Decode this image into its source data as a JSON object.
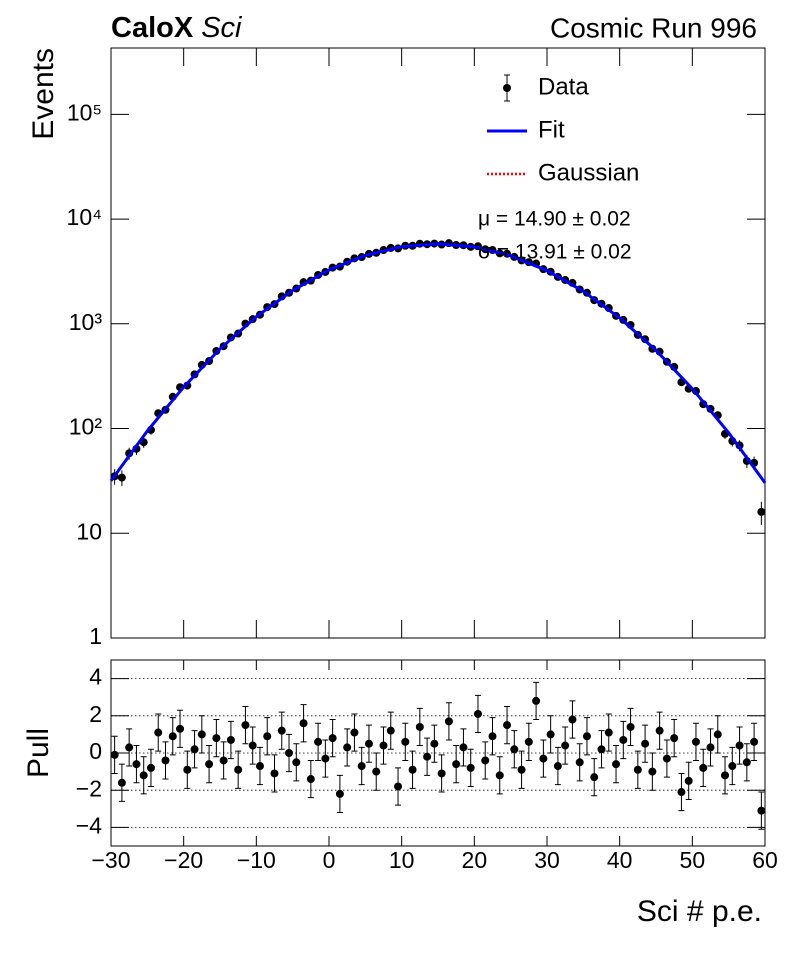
{
  "chart_data": [
    {
      "type": "errorbar",
      "title": "CaloX",
      "title_italic": "Sci",
      "subtitle": "Cosmic Run 996",
      "ylabel": "Events",
      "log_y": true,
      "legend": "top-right",
      "xlim": [
        -30,
        60
      ],
      "xticks": [
        -30,
        -20,
        -10,
        0,
        10,
        20,
        30,
        40,
        50,
        60
      ],
      "ylim": [
        1,
        430000
      ],
      "yticks": [
        1,
        10,
        {
          "value": 100,
          "label": "10²"
        },
        {
          "value": 1000,
          "label": "10³"
        },
        {
          "value": 10000,
          "label": "10⁴"
        },
        {
          "value": 100000,
          "label": "10⁵"
        }
      ],
      "annotations": [
        "μ = 14.90 ± 0.02",
        "σ = 13.91 ± 0.02"
      ],
      "series": [
        {
          "name": "Data",
          "color": "#000000",
          "style": "points",
          "x": [
            -29.5,
            -28.5,
            -27.5,
            -26.5,
            -25.5,
            -24.5,
            -23.5,
            -22.5,
            -21.5,
            -20.5,
            -19.5,
            -18.5,
            -17.5,
            -16.5,
            -15.5,
            -14.5,
            -13.5,
            -12.5,
            -11.5,
            -10.5,
            -9.5,
            -8.5,
            -7.5,
            -6.5,
            -5.5,
            -4.5,
            -3.5,
            -2.5,
            -1.5,
            -0.5,
            0.5,
            1.5,
            2.5,
            3.5,
            4.5,
            5.5,
            6.5,
            7.5,
            8.5,
            9.5,
            10.5,
            11.5,
            12.5,
            13.5,
            14.5,
            15.5,
            16.5,
            17.5,
            18.5,
            19.5,
            20.5,
            21.5,
            22.5,
            23.5,
            24.5,
            25.5,
            26.5,
            27.5,
            28.5,
            29.5,
            30.5,
            31.5,
            32.5,
            33.5,
            34.5,
            35.5,
            36.5,
            37.5,
            38.5,
            39.5,
            40.5,
            41.5,
            42.5,
            43.5,
            44.5,
            45.5,
            46.5,
            47.5,
            48.5,
            49.5,
            50.5,
            51.5,
            52.5,
            53.5,
            54.5,
            55.5,
            56.5,
            57.5,
            58.5,
            59.5
          ],
          "values": [
            35,
            34,
            58,
            64,
            74,
            97,
            140,
            151,
            201,
            248,
            257,
            329,
            405,
            441,
            550,
            611,
            741,
            807,
            1004,
            1108,
            1221,
            1443,
            1542,
            1828,
            1980,
            2171,
            2498,
            2581,
            2927,
            3125,
            3441,
            3514,
            3917,
            4217,
            4340,
            4650,
            4764,
            5063,
            5305,
            5247,
            5562,
            5563,
            5820,
            5756,
            5836,
            5711,
            5891,
            5655,
            5631,
            5432,
            5503,
            5154,
            5060,
            4707,
            4670,
            4350,
            4034,
            3881,
            3761,
            3323,
            3144,
            2803,
            2621,
            2456,
            2127,
            1977,
            1683,
            1556,
            1415,
            1192,
            1089,
            975,
            784,
            713,
            578,
            542,
            434,
            388,
            277,
            240,
            228,
            171,
            154,
            134,
            89,
            76,
            69,
            49,
            47,
            16
          ],
          "errors": [
            5.9,
            5.8,
            7.6,
            8.0,
            8.6,
            9.8,
            11.8,
            12.3,
            14.2,
            15.7,
            16.0,
            18.1,
            20.1,
            21.0,
            23.5,
            24.7,
            27.2,
            28.4,
            31.7,
            33.3,
            34.9,
            38.0,
            39.3,
            42.8,
            44.5,
            46.6,
            50.0,
            50.8,
            54.1,
            55.9,
            58.7,
            59.3,
            62.6,
            64.9,
            65.9,
            68.2,
            69.0,
            71.2,
            72.8,
            72.4,
            74.6,
            74.6,
            76.3,
            75.9,
            76.4,
            75.6,
            76.8,
            75.2,
            75.0,
            73.7,
            74.2,
            71.8,
            71.1,
            68.6,
            68.3,
            66.0,
            63.5,
            62.3,
            61.3,
            57.6,
            56.1,
            52.9,
            51.2,
            49.6,
            46.1,
            44.5,
            41.0,
            39.4,
            37.6,
            34.5,
            33.0,
            31.2,
            28.0,
            26.7,
            24.0,
            23.3,
            20.8,
            19.7,
            16.6,
            15.5,
            15.1,
            13.1,
            12.4,
            11.6,
            9.4,
            8.7,
            8.3,
            7.0,
            6.9,
            4.0
          ]
        },
        {
          "name": "Fit",
          "color": "#0000ff",
          "style": "line",
          "x": [
            -30,
            -25,
            -20,
            -15,
            -10,
            -5,
            0,
            5,
            10,
            15,
            20,
            25,
            30,
            35,
            40,
            45,
            50,
            55,
            60
          ],
          "values": [
            31.7,
            94.8,
            249,
            576,
            1169,
            2085,
            3268,
            4503,
            5451,
            5800,
            5423,
            4456,
            3218,
            2042,
            1139,
            558,
            240,
            91,
            30.3
          ]
        },
        {
          "name": "Gaussian",
          "color": "#ff0000",
          "style": "dotted",
          "x": [
            -30,
            -25,
            -20,
            -15,
            -10,
            -5,
            0,
            5,
            10,
            15,
            20,
            25,
            30,
            35,
            40,
            45,
            50,
            55,
            60
          ],
          "values": [
            31.7,
            94.8,
            249,
            576,
            1169,
            2085,
            3268,
            4503,
            5451,
            5800,
            5423,
            4456,
            3218,
            2042,
            1139,
            558,
            240,
            91,
            30.3
          ]
        }
      ]
    },
    {
      "type": "errorbar",
      "ylabel": "Pull",
      "xlabel": "Sci # p.e.",
      "grid": true,
      "xlim": [
        -30,
        60
      ],
      "xticks": [
        {
          "value": -30,
          "label": "−30"
        },
        {
          "value": -20,
          "label": "−20"
        },
        {
          "value": -10,
          "label": "−10"
        },
        0,
        10,
        20,
        30,
        40,
        50,
        60
      ],
      "ylim": [
        -5,
        5
      ],
      "yticks": [
        {
          "value": -4,
          "label": "−4"
        },
        {
          "value": -2,
          "label": "−2"
        },
        0,
        2,
        4
      ],
      "series": [
        {
          "color": "#000000",
          "style": "points",
          "x": [
            -29.5,
            -28.5,
            -27.5,
            -26.5,
            -25.5,
            -24.5,
            -23.5,
            -22.5,
            -21.5,
            -20.5,
            -19.5,
            -18.5,
            -17.5,
            -16.5,
            -15.5,
            -14.5,
            -13.5,
            -12.5,
            -11.5,
            -10.5,
            -9.5,
            -8.5,
            -7.5,
            -6.5,
            -5.5,
            -4.5,
            -3.5,
            -2.5,
            -1.5,
            -0.5,
            0.5,
            1.5,
            2.5,
            3.5,
            4.5,
            5.5,
            6.5,
            7.5,
            8.5,
            9.5,
            10.5,
            11.5,
            12.5,
            13.5,
            14.5,
            15.5,
            16.5,
            17.5,
            18.5,
            19.5,
            20.5,
            21.5,
            22.5,
            23.5,
            24.5,
            25.5,
            26.5,
            27.5,
            28.5,
            29.5,
            30.5,
            31.5,
            32.5,
            33.5,
            34.5,
            35.5,
            36.5,
            37.5,
            38.5,
            39.5,
            40.5,
            41.5,
            42.5,
            43.5,
            44.5,
            45.5,
            46.5,
            47.5,
            48.5,
            49.5,
            50.5,
            51.5,
            52.5,
            53.5,
            54.5,
            55.5,
            56.5,
            57.5,
            58.5,
            59.5
          ],
          "values": [
            -0.1,
            -1.6,
            0.3,
            -0.6,
            -1.2,
            -0.8,
            1.1,
            -0.4,
            0.9,
            1.3,
            -0.9,
            0.2,
            1.0,
            -0.6,
            0.8,
            -0.4,
            0.7,
            -0.9,
            1.5,
            0.4,
            -0.7,
            0.9,
            -1.1,
            1.2,
            0,
            -0.5,
            1.6,
            -1.4,
            0.6,
            -0.3,
            0.8,
            -2.2,
            0.3,
            1.1,
            -0.7,
            0.5,
            -1.0,
            0.4,
            1.2,
            -1.8,
            0.6,
            -0.9,
            1.4,
            -0.2,
            0.5,
            -1.1,
            1.7,
            -0.6,
            0.3,
            -0.8,
            2.1,
            -0.4,
            0.9,
            -1.2,
            1.5,
            0.2,
            -0.9,
            0.6,
            2.8,
            -0.3,
            1.0,
            -0.7,
            0.4,
            1.8,
            -0.5,
            0.9,
            -1.3,
            0.2,
            1.1,
            -0.6,
            0.7,
            1.4,
            -0.9,
            0.5,
            -1.0,
            1.2,
            -0.3,
            0.8,
            -2.1,
            -1.5,
            0.6,
            -0.8,
            0.3,
            1.0,
            -1.2,
            -0.7,
            0.4,
            -0.5,
            0.6,
            -3.1
          ],
          "errors": [
            1,
            1,
            1,
            1,
            1,
            1,
            1,
            1,
            1,
            1,
            1,
            1,
            1,
            1,
            1,
            1,
            1,
            1,
            1,
            1,
            1,
            1,
            1,
            1,
            1,
            1,
            1,
            1,
            1,
            1,
            1,
            1,
            1,
            1,
            1,
            1,
            1,
            1,
            1,
            1,
            1,
            1,
            1,
            1,
            1,
            1,
            1,
            1,
            1,
            1,
            1,
            1,
            1,
            1,
            1,
            1,
            1,
            1,
            1,
            1,
            1,
            1,
            1,
            1,
            1,
            1,
            1,
            1,
            1,
            1,
            1,
            1,
            1,
            1,
            1,
            1,
            1,
            1,
            1,
            1,
            1,
            1,
            1,
            1,
            1,
            1,
            1,
            1,
            1,
            1
          ]
        }
      ]
    }
  ]
}
